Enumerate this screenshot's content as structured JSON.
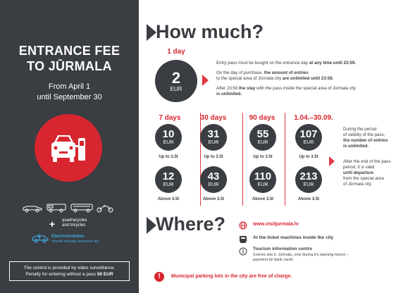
{
  "left": {
    "title_line1": "ENTRANCE FEE",
    "title_line2": "TO JŪRMALA",
    "period_line1": "From April 1",
    "period_line2": "until September 30",
    "vehicles_plus": "+",
    "vehicles_extra_line1": "quadracycles",
    "vehicles_extra_line2": "and tricycles",
    "electromobiles_label": "Electromobiles",
    "electromobiles_note": "should not pay entrance fee",
    "control_line1": "The control is provided by video surveillance.",
    "control_line2_prefix": "Penalty for entering without a pass ",
    "control_penalty": "50 EUR"
  },
  "how_much": {
    "title": "How much?",
    "day_label": "1 day",
    "day_price": "2",
    "currency": "EUR",
    "day_text1_a": "Entry pass must be bought on the entrance day ",
    "day_text1_b": "at any time until 23:59.",
    "day_text2_a": "On the day of purchase, ",
    "day_text2_b": "the amount of entries",
    "day_text2_c": "to the special area of Jūrmala city ",
    "day_text2_d": "are unlimited until 23:59.",
    "day_text3_a": "After 23:59 ",
    "day_text3_b": "the stay",
    "day_text3_c": " with the pass inside the special area of Jūrmala city",
    "day_text3_d": "is unlimited."
  },
  "passes": [
    {
      "period": "7 days",
      "price_light": "10",
      "price_heavy": "12"
    },
    {
      "period": "30 days",
      "price_light": "31",
      "price_heavy": "43"
    },
    {
      "period": "90 days",
      "price_light": "55",
      "price_heavy": "110"
    },
    {
      "period": "1.04.–30.09.",
      "price_light": "107",
      "price_heavy": "213"
    }
  ],
  "weight_light": "Up to 3.5t",
  "weight_heavy": "Above 3.5t",
  "season_note": {
    "p1_a": "During the period",
    "p1_b": "of validity of the pass,",
    "p1_c": "the number of entries",
    "p1_d": "is unlimited.",
    "p2_a": "After the end of the pass",
    "p2_b": "period, it is valid",
    "p2_c": "until departure",
    "p2_d": "from the special area",
    "p2_e": "of Jūrmala city."
  },
  "where": {
    "title": "Where?",
    "website": "www.visitjurmala.lv",
    "ticket_machines": "At the ticket machines inside the city",
    "tourism_title": "Tourism information centre",
    "tourism_detail1": "(Lienes iela 5, Jūrmala, only during it's opening hours) –",
    "tourism_detail2": "payment by bank cards",
    "parking_note": "Municipal parking lots in the city are free of charge."
  },
  "colors": {
    "accent": "#d7262f",
    "dark": "#3a3d42",
    "electro": "#3fa9e0"
  }
}
